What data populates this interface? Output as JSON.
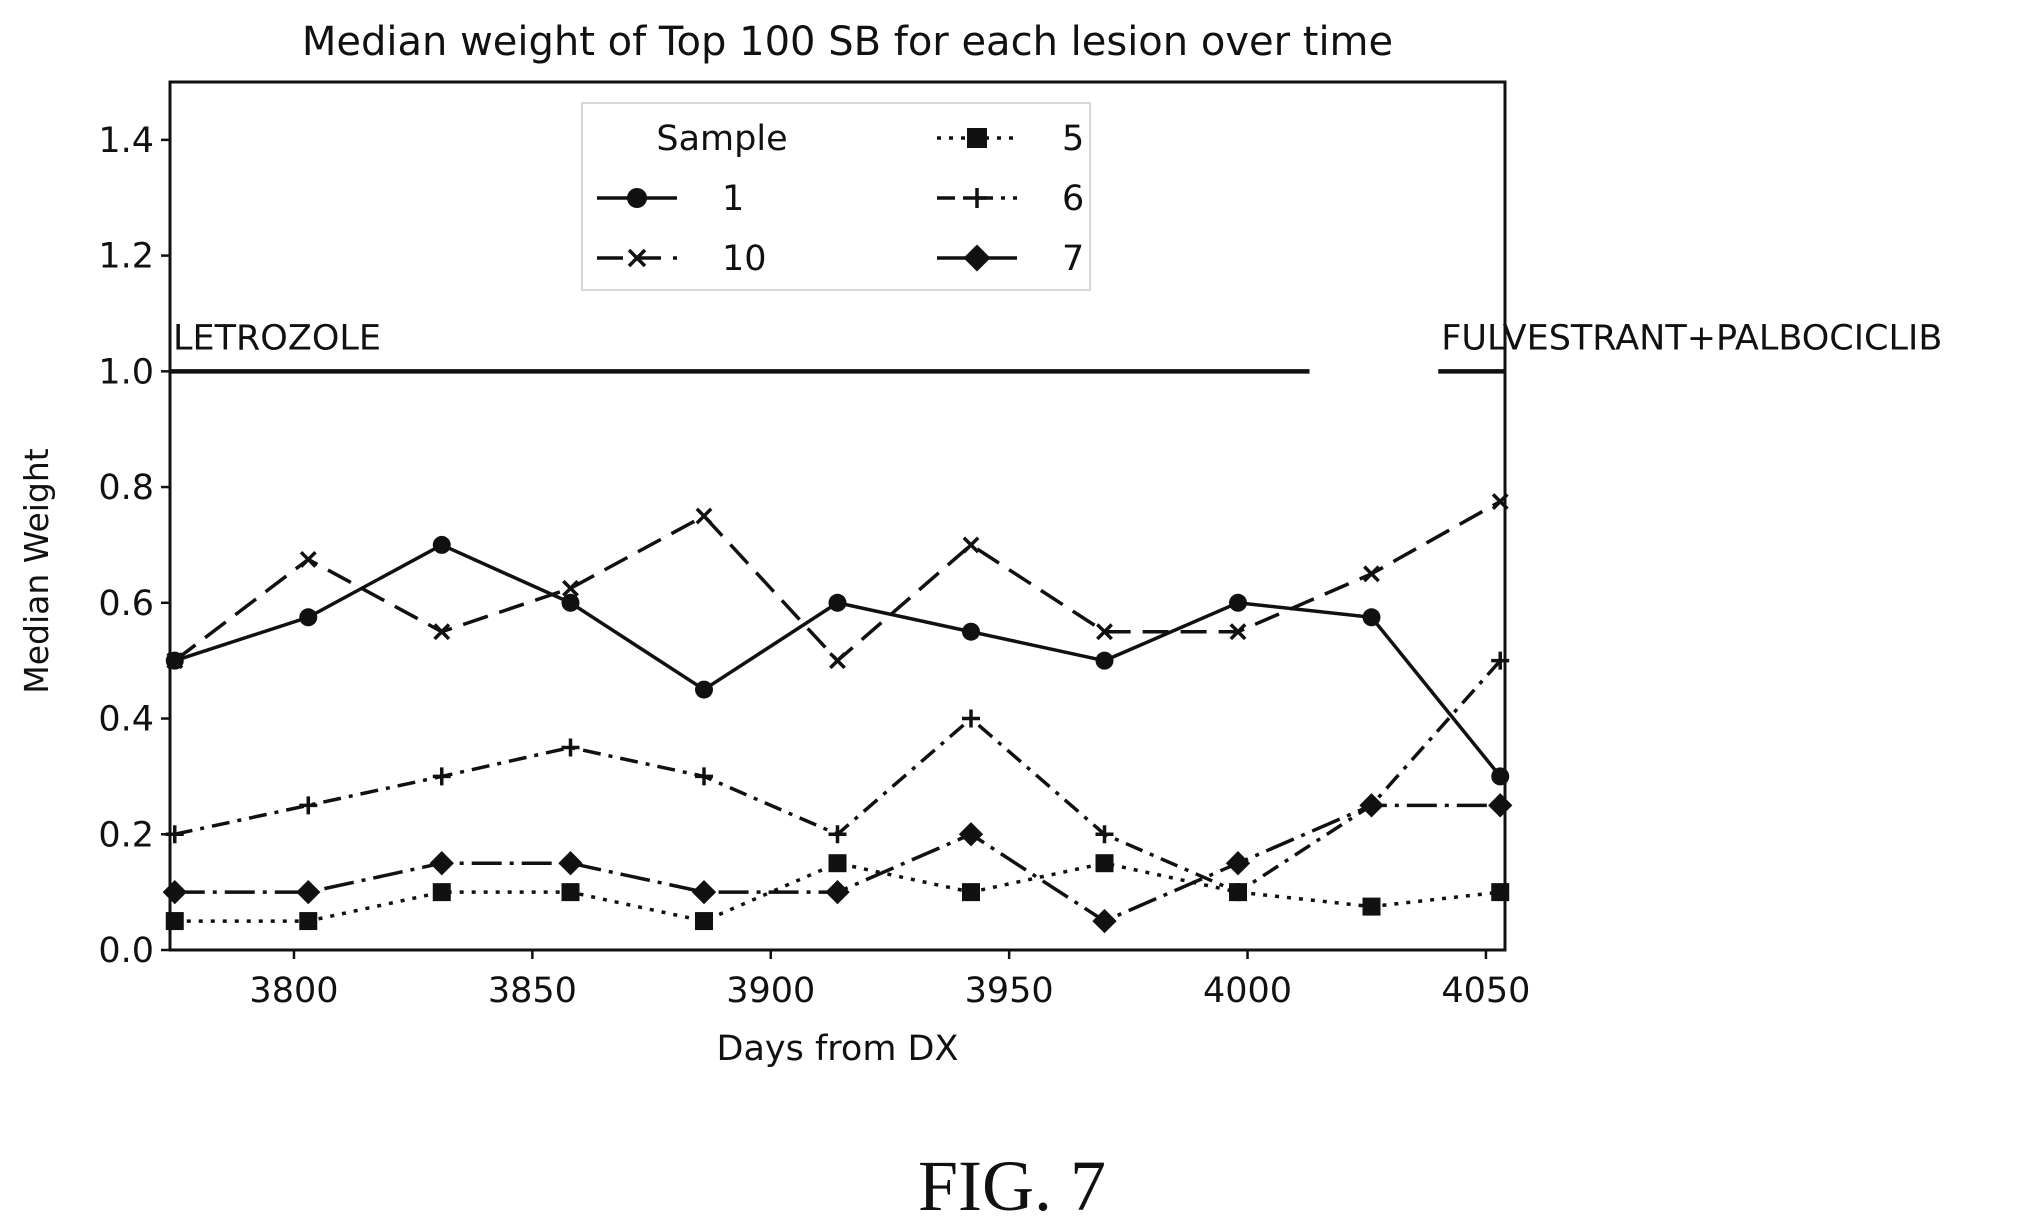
{
  "chart_data": {
    "type": "line",
    "title": "Median weight of Top 100 SB for each lesion over time",
    "xlabel": "Days from DX",
    "ylabel": "Median Weight",
    "xlim": [
      3774,
      4054
    ],
    "ylim": [
      0.0,
      1.5
    ],
    "xticks": [
      3800,
      3850,
      3900,
      3950,
      4000,
      4050
    ],
    "yticks": [
      0.0,
      0.2,
      0.4,
      0.6,
      0.8,
      1.0,
      1.2,
      1.4
    ],
    "grid": false,
    "legend": {
      "title": "Sample",
      "placement": "top-center",
      "columns": 2
    },
    "x": [
      3775,
      3803,
      3831,
      3858,
      3886,
      3914,
      3942,
      3970,
      3998,
      4026,
      4053
    ],
    "series": [
      {
        "name": "1",
        "marker": "circle",
        "dash": "solid",
        "values": [
          0.5,
          0.575,
          0.7,
          0.6,
          0.45,
          0.6,
          0.55,
          0.5,
          0.6,
          0.575,
          0.3
        ]
      },
      {
        "name": "10",
        "marker": "x",
        "dash": "dashed",
        "values": [
          0.5,
          0.675,
          0.55,
          0.625,
          0.75,
          0.5,
          0.7,
          0.55,
          0.55,
          0.65,
          0.775
        ]
      },
      {
        "name": "5",
        "marker": "square",
        "dash": "dotted",
        "values": [
          0.05,
          0.05,
          0.1,
          0.1,
          0.05,
          0.15,
          0.1,
          0.15,
          0.1,
          0.075,
          0.1
        ]
      },
      {
        "name": "6",
        "marker": "plus",
        "dash": "dashdot",
        "values": [
          0.2,
          0.25,
          0.3,
          0.35,
          0.3,
          0.2,
          0.4,
          0.2,
          0.1,
          0.25,
          0.5
        ]
      },
      {
        "name": "7",
        "marker": "diamond",
        "dash": "longdashdot",
        "values": [
          0.1,
          0.1,
          0.15,
          0.15,
          0.1,
          0.1,
          0.2,
          0.05,
          0.15,
          0.25,
          0.25
        ]
      }
    ],
    "annotations": [
      {
        "label": "LETROZOLE",
        "y": 1.0,
        "x_start": 3774,
        "x_end": 4013
      },
      {
        "label": "FULVESTRANT+PALBOCICLIB",
        "y": 1.0,
        "x_start": 4040,
        "x_end": 4054
      }
    ]
  },
  "figure_caption": "FIG. 7"
}
